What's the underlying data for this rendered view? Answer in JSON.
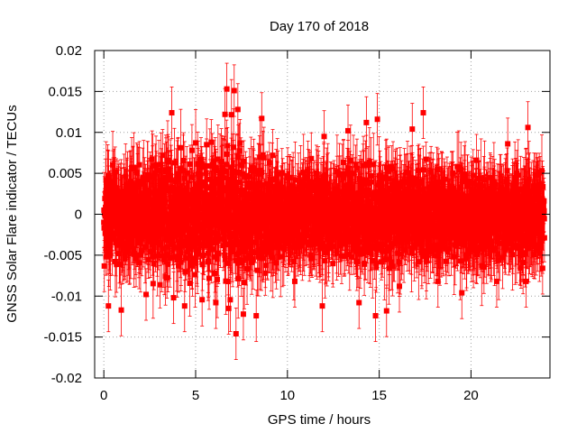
{
  "chart_data": {
    "type": "scatter",
    "title": "Day 170 of 2018",
    "xlabel": "GPS time / hours",
    "ylabel": "GNSS Solar Flare indicator / TECUs",
    "xlim": [
      -0.5,
      24.3
    ],
    "ylim": [
      -0.02,
      0.02
    ],
    "x_ticks": [
      0,
      5,
      10,
      15,
      20
    ],
    "x_tick_labels": [
      "0",
      "5",
      "10",
      "15",
      "20"
    ],
    "y_ticks": [
      -0.02,
      -0.015,
      -0.01,
      -0.005,
      0,
      0.005,
      0.01,
      0.015,
      0.02
    ],
    "y_tick_labels": [
      "-0.02",
      "-0.015",
      "-0.01",
      "-0.005",
      "0",
      "0.005",
      "0.01",
      "0.015",
      "0.02"
    ],
    "grid": true,
    "legend": "none",
    "series": [
      {
        "name": "solar flare indicator",
        "color": "#ff0000",
        "marker": "square",
        "error_bars": true,
        "x_start": 0,
        "x_end": 24,
        "sample_interval_hours": 0.00833,
        "point_count": 2880,
        "typical_spread": 0.006,
        "typical_error": 0.0035,
        "envelope": [
          {
            "x": 0,
            "low": -0.009,
            "high": 0.009
          },
          {
            "x": 2,
            "low": -0.009,
            "high": 0.009
          },
          {
            "x": 4,
            "low": -0.011,
            "high": 0.011
          },
          {
            "x": 6,
            "low": -0.012,
            "high": 0.013
          },
          {
            "x": 7,
            "low": -0.014,
            "high": 0.015
          },
          {
            "x": 8,
            "low": -0.011,
            "high": 0.011
          },
          {
            "x": 10,
            "low": -0.007,
            "high": 0.007
          },
          {
            "x": 12,
            "low": -0.008,
            "high": 0.008
          },
          {
            "x": 14,
            "low": -0.01,
            "high": 0.01
          },
          {
            "x": 16,
            "low": -0.009,
            "high": 0.009
          },
          {
            "x": 18,
            "low": -0.008,
            "high": 0.008
          },
          {
            "x": 20,
            "low": -0.008,
            "high": 0.008
          },
          {
            "x": 22,
            "low": -0.008,
            "high": 0.008
          },
          {
            "x": 24,
            "low": -0.008,
            "high": 0.009
          }
        ],
        "highlighted_points": [
          {
            "x": 0.25,
            "y": -0.0112
          },
          {
            "x": 0.95,
            "y": -0.0117
          },
          {
            "x": 2.3,
            "y": -0.0098
          },
          {
            "x": 3.2,
            "y": 0.0072
          },
          {
            "x": 3.7,
            "y": 0.0124
          },
          {
            "x": 3.8,
            "y": -0.0102
          },
          {
            "x": 4.4,
            "y": -0.0112
          },
          {
            "x": 4.8,
            "y": 0.0078
          },
          {
            "x": 5.6,
            "y": 0.0085
          },
          {
            "x": 6.1,
            "y": -0.0108
          },
          {
            "x": 6.6,
            "y": 0.0122
          },
          {
            "x": 6.7,
            "y": 0.0153
          },
          {
            "x": 6.8,
            "y": -0.0115
          },
          {
            "x": 7.1,
            "y": 0.0151
          },
          {
            "x": 7.2,
            "y": -0.0146
          },
          {
            "x": 7.3,
            "y": 0.0128
          },
          {
            "x": 7.6,
            "y": -0.0122
          },
          {
            "x": 8.3,
            "y": -0.0124
          },
          {
            "x": 8.6,
            "y": 0.0117
          },
          {
            "x": 9.2,
            "y": 0.0072
          },
          {
            "x": 10.4,
            "y": -0.0082
          },
          {
            "x": 11.3,
            "y": 0.0068
          },
          {
            "x": 11.9,
            "y": -0.0112
          },
          {
            "x": 12.0,
            "y": 0.0095
          },
          {
            "x": 13.3,
            "y": 0.0102
          },
          {
            "x": 13.9,
            "y": -0.0108
          },
          {
            "x": 14.3,
            "y": 0.0112
          },
          {
            "x": 14.8,
            "y": -0.0124
          },
          {
            "x": 14.9,
            "y": 0.0116
          },
          {
            "x": 15.4,
            "y": -0.0118
          },
          {
            "x": 16.1,
            "y": -0.0088
          },
          {
            "x": 16.8,
            "y": 0.0104
          },
          {
            "x": 17.4,
            "y": 0.0124
          },
          {
            "x": 18.2,
            "y": -0.0082
          },
          {
            "x": 19.5,
            "y": -0.0096
          },
          {
            "x": 20.3,
            "y": 0.0066
          },
          {
            "x": 21.4,
            "y": -0.0082
          },
          {
            "x": 22.0,
            "y": 0.0086
          },
          {
            "x": 23.0,
            "y": -0.0082
          },
          {
            "x": 23.1,
            "y": 0.0106
          },
          {
            "x": 23.9,
            "y": -0.0066
          }
        ]
      }
    ]
  }
}
